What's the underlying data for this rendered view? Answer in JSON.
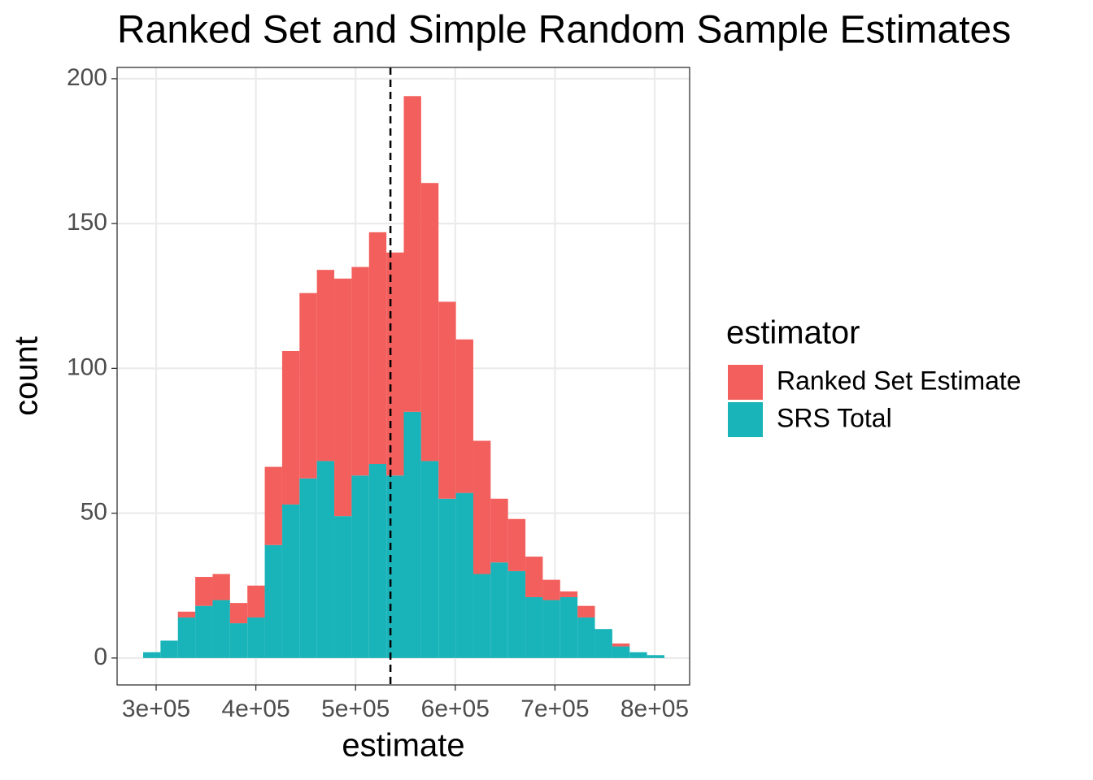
{
  "chart_data": {
    "type": "stacked_histogram",
    "title": "Ranked Set and Simple Random Sample Estimates",
    "x_label": "estimate",
    "y_label": "count",
    "legend_title": "estimator",
    "legend_position": "right",
    "bins": [
      286950,
      304378,
      321806,
      339234,
      356662,
      374090,
      391518,
      408946,
      426374,
      443802,
      461230,
      478658,
      496086,
      513514,
      530942,
      548370,
      565798,
      583226,
      600654,
      618082,
      635510,
      652938,
      670366,
      687794,
      705222,
      722650,
      740078,
      757506,
      774934,
      792362,
      809790
    ],
    "series": [
      {
        "name": "Ranked Set Estimate",
        "color": "#f35f5c",
        "values": [
          0,
          0,
          2,
          10,
          9,
          7,
          11,
          27,
          53,
          64,
          66,
          82,
          72,
          80,
          77,
          109,
          96,
          68,
          53,
          46,
          22,
          18,
          14,
          7,
          2,
          4,
          0,
          1,
          0,
          0
        ]
      },
      {
        "name": "SRS Total",
        "color": "#19b4b9",
        "values": [
          2,
          6,
          14,
          18,
          20,
          12,
          14,
          39,
          53,
          62,
          68,
          49,
          63,
          67,
          63,
          85,
          68,
          55,
          57,
          29,
          33,
          30,
          21,
          20,
          21,
          14,
          10,
          4,
          2,
          1
        ]
      }
    ],
    "vline": 535000,
    "xlim": [
      260850,
      835070
    ],
    "ylim": [
      -9.3,
      203.9
    ],
    "xticks": [
      {
        "value": 300000,
        "label": "3e+05"
      },
      {
        "value": 400000,
        "label": "4e+05"
      },
      {
        "value": 500000,
        "label": "5e+05"
      },
      {
        "value": 600000,
        "label": "6e+05"
      },
      {
        "value": 700000,
        "label": "7e+05"
      },
      {
        "value": 800000,
        "label": "8e+05"
      }
    ],
    "yticks": [
      0,
      50,
      100,
      150,
      200
    ],
    "grid": true
  }
}
